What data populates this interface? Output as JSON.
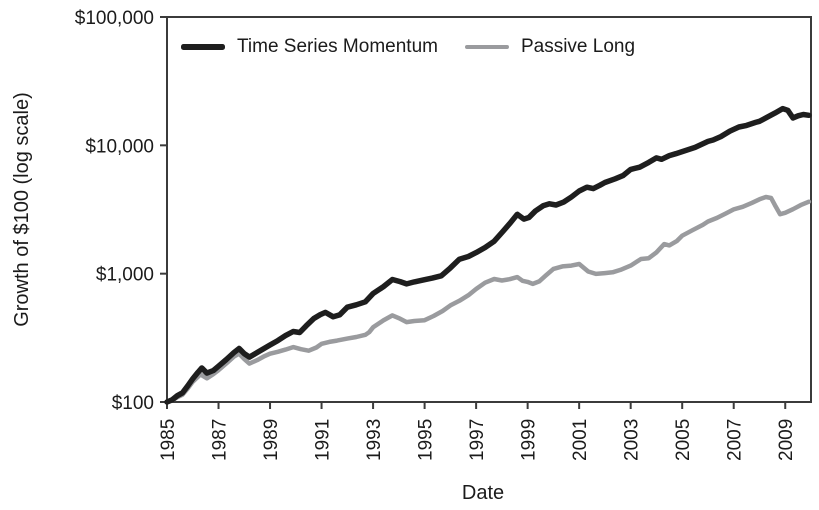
{
  "figure": {
    "background": "#ffffff",
    "text_color": "#1b1b1b",
    "axis_color": "#3b3b3b"
  },
  "chart_data": {
    "type": "line",
    "title": "",
    "xlabel": "Date",
    "ylabel": "Growth of $100 (log scale)",
    "grid": false,
    "x_axis": {
      "min": 1985,
      "max": 2010,
      "tick_years": [
        1985,
        1987,
        1989,
        1991,
        1993,
        1995,
        1997,
        1999,
        2001,
        2003,
        2005,
        2007,
        2009
      ],
      "tick_label_rotation": -90
    },
    "y_axis": {
      "scale": "log",
      "min": 100,
      "max": 100000,
      "ticks": [
        {
          "label": "$100",
          "value": 100
        },
        {
          "label": "$1,000",
          "value": 1000
        },
        {
          "label": "$10,000",
          "value": 10000
        },
        {
          "label": "$100,000",
          "value": 100000
        }
      ]
    },
    "legend": {
      "position": "top-left-horizontal",
      "entries": [
        {
          "label": "Time Series Momentum",
          "color": "#1e1e1e",
          "line_width": 5.5
        },
        {
          "label": "Passive Long",
          "color": "#9a9b9e",
          "line_width": 4.5
        }
      ]
    },
    "series": [
      {
        "name": "Time Series Momentum",
        "color": "#1e1e1e",
        "width": 5.5,
        "points": [
          [
            1985.0,
            100
          ],
          [
            1985.2,
            104
          ],
          [
            1985.4,
            112
          ],
          [
            1985.6,
            118
          ],
          [
            1985.8,
            133
          ],
          [
            1986.0,
            152
          ],
          [
            1986.2,
            170
          ],
          [
            1986.35,
            184
          ],
          [
            1986.55,
            168
          ],
          [
            1986.8,
            176
          ],
          [
            1987.0,
            190
          ],
          [
            1987.3,
            214
          ],
          [
            1987.6,
            243
          ],
          [
            1987.8,
            261
          ],
          [
            1988.0,
            238
          ],
          [
            1988.2,
            224
          ],
          [
            1988.5,
            243
          ],
          [
            1988.75,
            260
          ],
          [
            1989.0,
            278
          ],
          [
            1989.3,
            301
          ],
          [
            1989.6,
            329
          ],
          [
            1989.9,
            354
          ],
          [
            1990.15,
            348
          ],
          [
            1990.4,
            392
          ],
          [
            1990.7,
            447
          ],
          [
            1990.95,
            480
          ],
          [
            1991.15,
            499
          ],
          [
            1991.45,
            461
          ],
          [
            1991.7,
            477
          ],
          [
            1992.0,
            548
          ],
          [
            1992.35,
            572
          ],
          [
            1992.7,
            604
          ],
          [
            1993.0,
            700
          ],
          [
            1993.4,
            792
          ],
          [
            1993.75,
            901
          ],
          [
            1994.05,
            868
          ],
          [
            1994.3,
            833
          ],
          [
            1994.6,
            862
          ],
          [
            1995.0,
            898
          ],
          [
            1995.3,
            924
          ],
          [
            1995.65,
            962
          ],
          [
            1996.0,
            1110
          ],
          [
            1996.35,
            1296
          ],
          [
            1996.7,
            1360
          ],
          [
            1997.0,
            1460
          ],
          [
            1997.35,
            1600
          ],
          [
            1997.7,
            1790
          ],
          [
            1998.0,
            2090
          ],
          [
            1998.3,
            2450
          ],
          [
            1998.6,
            2900
          ],
          [
            1998.85,
            2660
          ],
          [
            1999.05,
            2740
          ],
          [
            1999.3,
            3080
          ],
          [
            1999.6,
            3380
          ],
          [
            1999.85,
            3500
          ],
          [
            2000.1,
            3430
          ],
          [
            2000.4,
            3610
          ],
          [
            2000.7,
            3960
          ],
          [
            2001.0,
            4410
          ],
          [
            2001.3,
            4720
          ],
          [
            2001.55,
            4600
          ],
          [
            2001.8,
            4880
          ],
          [
            2002.0,
            5130
          ],
          [
            2002.4,
            5490
          ],
          [
            2002.7,
            5810
          ],
          [
            2003.0,
            6490
          ],
          [
            2003.35,
            6750
          ],
          [
            2003.7,
            7360
          ],
          [
            2004.0,
            7980
          ],
          [
            2004.2,
            7790
          ],
          [
            2004.5,
            8320
          ],
          [
            2004.75,
            8600
          ],
          [
            2005.0,
            8940
          ],
          [
            2005.5,
            9640
          ],
          [
            2006.0,
            10730
          ],
          [
            2006.2,
            11000
          ],
          [
            2006.5,
            11700
          ],
          [
            2006.85,
            12900
          ],
          [
            2007.0,
            13300
          ],
          [
            2007.2,
            13900
          ],
          [
            2007.5,
            14300
          ],
          [
            2007.85,
            15100
          ],
          [
            2008.0,
            15400
          ],
          [
            2008.3,
            16560
          ],
          [
            2008.6,
            17840
          ],
          [
            2008.9,
            19320
          ],
          [
            2009.1,
            18750
          ],
          [
            2009.3,
            16350
          ],
          [
            2009.5,
            16980
          ],
          [
            2009.7,
            17380
          ],
          [
            2009.92,
            17150
          ]
        ]
      },
      {
        "name": "Passive Long",
        "color": "#9a9b9e",
        "width": 4.5,
        "points": [
          [
            1985.0,
            100
          ],
          [
            1985.2,
            103
          ],
          [
            1985.4,
            109
          ],
          [
            1985.6,
            114
          ],
          [
            1985.8,
            127
          ],
          [
            1986.0,
            144
          ],
          [
            1986.3,
            164
          ],
          [
            1986.55,
            153
          ],
          [
            1986.8,
            165
          ],
          [
            1987.0,
            177
          ],
          [
            1987.3,
            199
          ],
          [
            1987.6,
            226
          ],
          [
            1987.8,
            238
          ],
          [
            1988.0,
            216
          ],
          [
            1988.2,
            199
          ],
          [
            1988.5,
            212
          ],
          [
            1988.75,
            226
          ],
          [
            1989.0,
            238
          ],
          [
            1989.3,
            246
          ],
          [
            1989.6,
            256
          ],
          [
            1989.9,
            268
          ],
          [
            1990.2,
            258
          ],
          [
            1990.5,
            251
          ],
          [
            1990.8,
            266
          ],
          [
            1991.0,
            284
          ],
          [
            1991.3,
            294
          ],
          [
            1991.6,
            301
          ],
          [
            1992.0,
            312
          ],
          [
            1992.35,
            321
          ],
          [
            1992.7,
            334
          ],
          [
            1992.85,
            350
          ],
          [
            1993.0,
            382
          ],
          [
            1993.4,
            432
          ],
          [
            1993.75,
            473
          ],
          [
            1994.05,
            446
          ],
          [
            1994.3,
            419
          ],
          [
            1994.6,
            428
          ],
          [
            1995.0,
            434
          ],
          [
            1995.35,
            468
          ],
          [
            1995.7,
            512
          ],
          [
            1996.0,
            566
          ],
          [
            1996.35,
            615
          ],
          [
            1996.7,
            680
          ],
          [
            1997.0,
            760
          ],
          [
            1997.35,
            850
          ],
          [
            1997.7,
            908
          ],
          [
            1998.0,
            884
          ],
          [
            1998.3,
            905
          ],
          [
            1998.6,
            940
          ],
          [
            1998.8,
            880
          ],
          [
            1999.0,
            862
          ],
          [
            1999.2,
            833
          ],
          [
            1999.45,
            870
          ],
          [
            1999.7,
            966
          ],
          [
            2000.0,
            1090
          ],
          [
            2000.35,
            1140
          ],
          [
            2000.7,
            1155
          ],
          [
            2001.0,
            1190
          ],
          [
            2001.35,
            1040
          ],
          [
            2001.65,
            995
          ],
          [
            2002.0,
            1010
          ],
          [
            2002.3,
            1025
          ],
          [
            2002.6,
            1070
          ],
          [
            2003.0,
            1156
          ],
          [
            2003.4,
            1300
          ],
          [
            2003.7,
            1320
          ],
          [
            2004.0,
            1464
          ],
          [
            2004.3,
            1700
          ],
          [
            2004.5,
            1660
          ],
          [
            2004.8,
            1800
          ],
          [
            2005.0,
            1976
          ],
          [
            2005.4,
            2180
          ],
          [
            2005.8,
            2400
          ],
          [
            2006.0,
            2550
          ],
          [
            2006.35,
            2720
          ],
          [
            2006.7,
            2950
          ],
          [
            2007.0,
            3170
          ],
          [
            2007.35,
            3320
          ],
          [
            2007.7,
            3560
          ],
          [
            2008.0,
            3800
          ],
          [
            2008.25,
            3960
          ],
          [
            2008.45,
            3890
          ],
          [
            2008.6,
            3420
          ],
          [
            2008.8,
            2905
          ],
          [
            2009.0,
            2980
          ],
          [
            2009.3,
            3180
          ],
          [
            2009.6,
            3420
          ],
          [
            2009.92,
            3640
          ]
        ]
      }
    ]
  }
}
